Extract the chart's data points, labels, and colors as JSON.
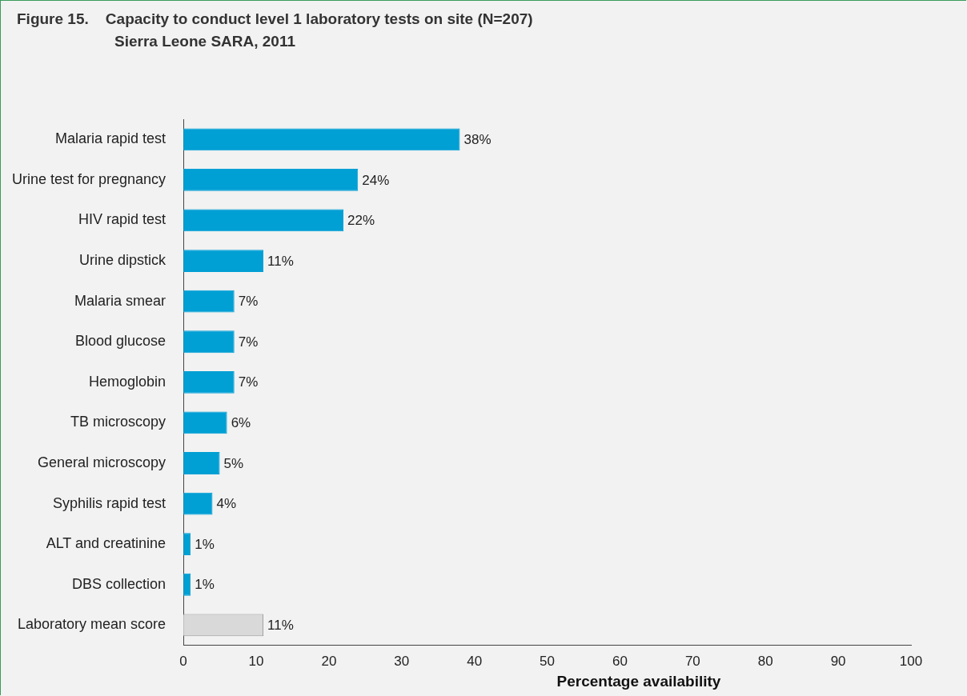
{
  "chart_data": {
    "type": "bar",
    "orientation": "horizontal",
    "title": "Figure 15.    Capacity to conduct level 1 laboratory tests on site (N=207)",
    "subtitle": "Sierra Leone SARA, 2011",
    "xlabel": "Percentage availability",
    "categories": [
      "Malaria rapid test",
      "Urine test for pregnancy",
      "HIV rapid test",
      "Urine dipstick",
      "Malaria smear",
      "Blood glucose",
      "Hemoglobin",
      "TB microscopy",
      "General microscopy",
      "Syphilis rapid test",
      "ALT and creatinine",
      "DBS collection",
      "Laboratory mean score"
    ],
    "values": [
      38,
      24,
      22,
      11,
      7,
      7,
      7,
      6,
      5,
      4,
      1,
      1,
      11
    ],
    "value_labels": [
      "38%",
      "24%",
      "22%",
      "11%",
      "7%",
      "7%",
      "7%",
      "6%",
      "5%",
      "4%",
      "1%",
      "1%",
      "11%"
    ],
    "colors": [
      "#009fd4",
      "#009fd4",
      "#009fd4",
      "#009fd4",
      "#009fd4",
      "#009fd4",
      "#009fd4",
      "#009fd4",
      "#009fd4",
      "#009fd4",
      "#009fd4",
      "#009fd4",
      "#d9d9d9"
    ],
    "xlim": [
      0,
      100
    ],
    "xticks": [
      0,
      10,
      20,
      30,
      40,
      50,
      60,
      70,
      80,
      90,
      100
    ],
    "grid": false,
    "legend": false
  }
}
